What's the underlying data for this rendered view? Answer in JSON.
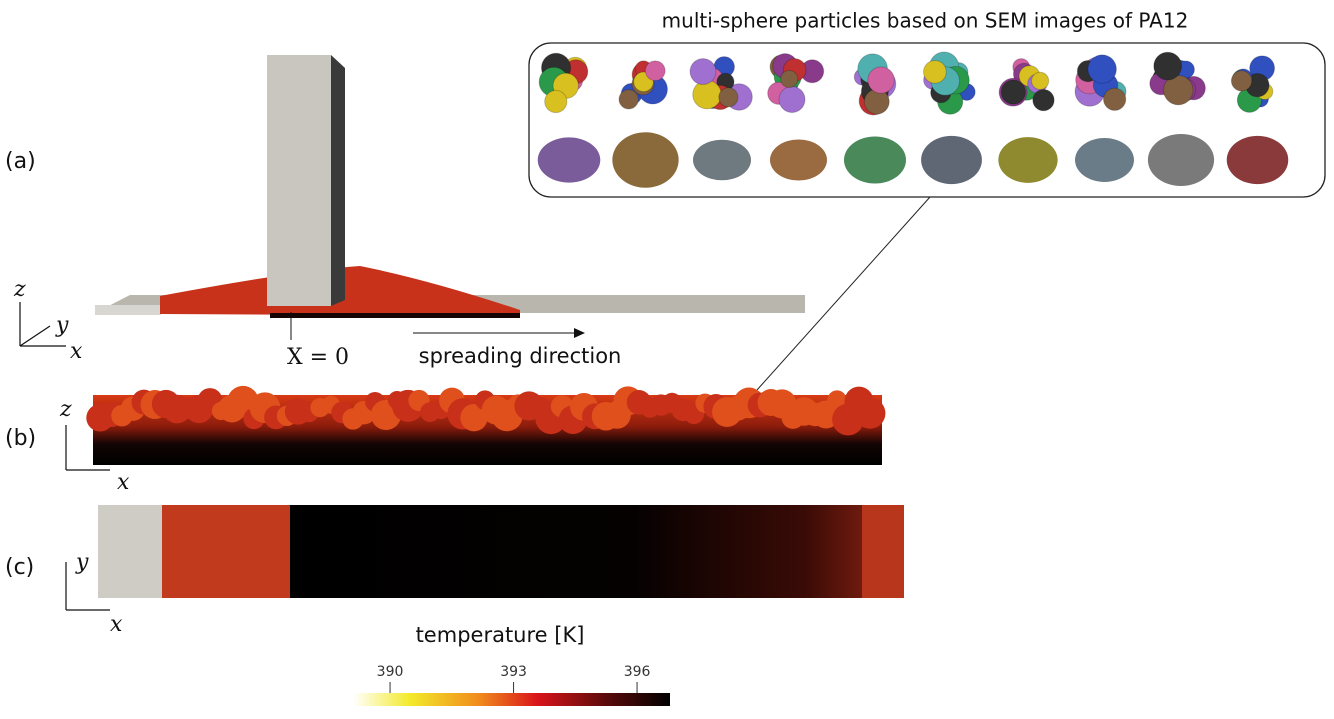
{
  "header": "multi-sphere particles based on SEM images of PA12",
  "panel_labels": [
    "(a)",
    "(b)",
    "(c)"
  ],
  "annotations": {
    "origin": "X = 0",
    "direction": "spreading direction"
  },
  "axis_letters": {
    "a": [
      "z",
      "y",
      "x"
    ],
    "b": [
      "z",
      "x"
    ],
    "c": [
      "y",
      "x"
    ]
  },
  "colorbar": {
    "title": "temperature [K]",
    "lim": [
      389.1,
      396.8
    ],
    "ticks": [
      390,
      393,
      396
    ]
  }
}
